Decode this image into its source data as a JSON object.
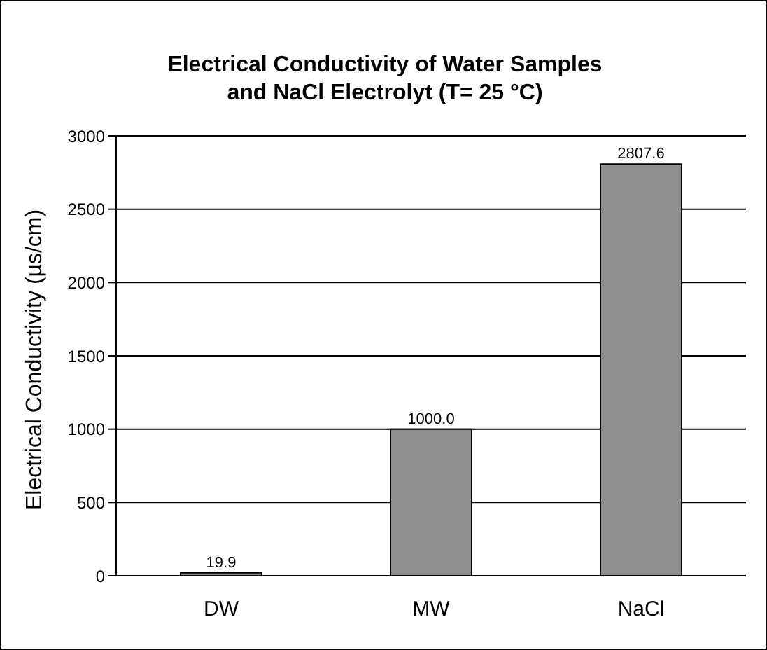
{
  "chart_data": {
    "type": "bar",
    "title": "Electrical Conductivity of  Water Samples\nand NaCl  Electrolyt (T= 25 °C)",
    "ylabel": "Electrical Conductivity (µs/cm)",
    "categories": [
      "DW",
      "MW",
      "NaCl"
    ],
    "values": [
      19.9,
      1000.0,
      2807.6
    ],
    "value_labels": [
      "19.9",
      "1000.0",
      "2807.6"
    ],
    "color": "#8f8f8f",
    "ylim": [
      0,
      3000
    ],
    "yticks": [
      0,
      500,
      1000,
      1500,
      2000,
      2500,
      3000
    ],
    "grid": "y"
  }
}
